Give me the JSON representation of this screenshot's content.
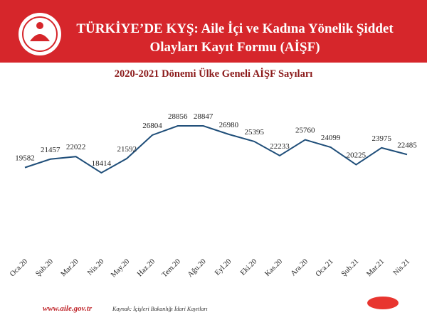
{
  "chart_data": {
    "type": "line",
    "title": [
      "TÜRKİYE’DE KYŞ: Aile İçi ve Kadına Yönelik Şiddet",
      "Olayları Kayıt Formu (AİŞF)"
    ],
    "subtitle": "2020-2021 Dönemi Ülke Geneli AİŞF Sayıları",
    "website": "www.aile.gov.tr",
    "source": "Kaynak: İçişleri Bakanlığı İdari Kayıtları",
    "categories": [
      "Oca.20",
      "Şub.20",
      "Mar.20",
      "Nis.20",
      "May.20",
      "Haz.20",
      "Tem.20",
      "Ağu.20",
      "Eyl.20",
      "Eki.20",
      "Kas.20",
      "Ara.20",
      "Oca.21",
      "Şub.21",
      "Mar.21",
      "Nis.21"
    ],
    "values": [
      19582,
      21457,
      22022,
      18414,
      21592,
      26804,
      28856,
      28847,
      26980,
      25395,
      22233,
      25760,
      24099,
      20225,
      23975,
      22485
    ],
    "color": "#1f4e79"
  }
}
